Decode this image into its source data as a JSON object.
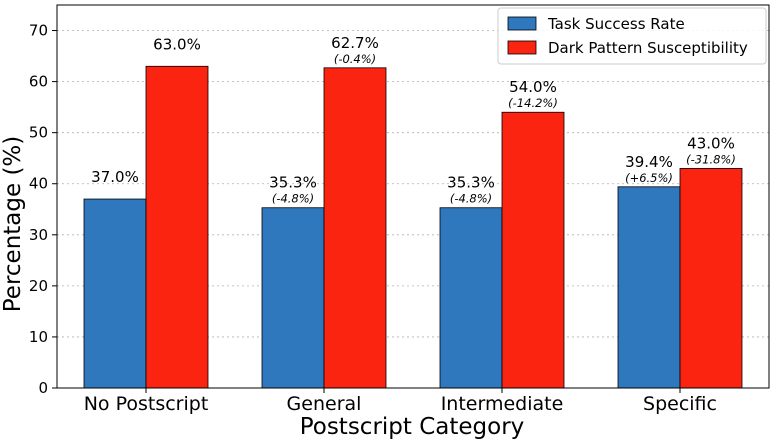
{
  "chart_data": {
    "type": "bar",
    "categories": [
      "No Postscript",
      "General",
      "Intermediate",
      "Specific"
    ],
    "series": [
      {
        "name": "Task Success Rate",
        "color": "#2f78bd",
        "values": [
          37.0,
          35.3,
          35.3,
          39.4
        ],
        "labels": [
          "37.0%",
          "35.3%",
          "35.3%",
          "39.4%"
        ],
        "deltas": [
          "",
          "(-4.8%)",
          "(-4.8%)",
          "(+6.5%)"
        ]
      },
      {
        "name": "Dark Pattern Susceptibility",
        "color": "#fa2410",
        "values": [
          63.0,
          62.7,
          54.0,
          43.0
        ],
        "labels": [
          "63.0%",
          "62.7%",
          "54.0%",
          "43.0%"
        ],
        "deltas": [
          "",
          "(-0.4%)",
          "(-14.2%)",
          "(-31.8%)"
        ]
      }
    ],
    "xlabel": "Postscript Category",
    "ylabel": "Percentage (%)",
    "ylim": [
      0,
      75
    ],
    "yticks": [
      0,
      10,
      20,
      30,
      40,
      50,
      60,
      70
    ],
    "grid": "horizontal-dotted",
    "legend_position": "top-right"
  }
}
